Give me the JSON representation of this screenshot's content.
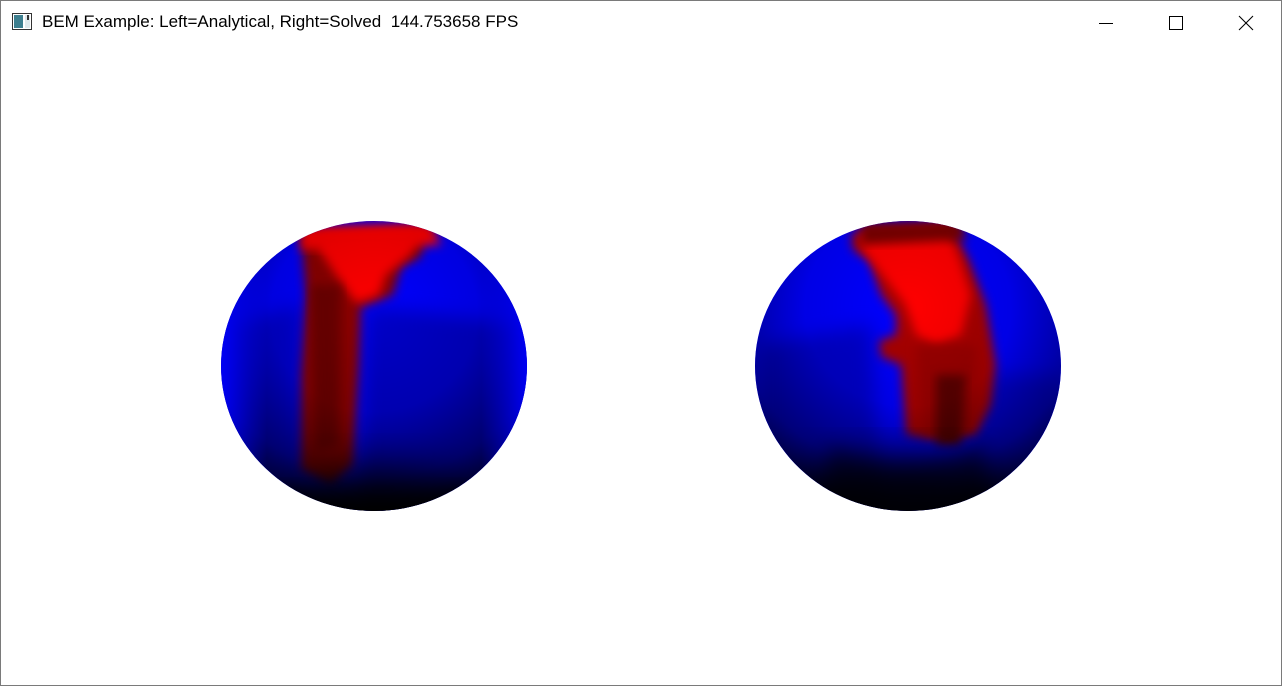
{
  "window": {
    "title": "BEM Example: Left=Analytical, Right=Solved",
    "fps": "144.753658 FPS",
    "app_icon": "app-window-icon",
    "controls": {
      "minimize": "minimize-icon",
      "maximize": "maximize-icon",
      "close": "close-icon"
    }
  },
  "scene": {
    "left_sphere": "Analytical",
    "right_sphere": "Solved",
    "colors": {
      "background": "#ffffff",
      "high": "#ff0000",
      "low": "#0000ff",
      "shadow": "#000000"
    }
  }
}
